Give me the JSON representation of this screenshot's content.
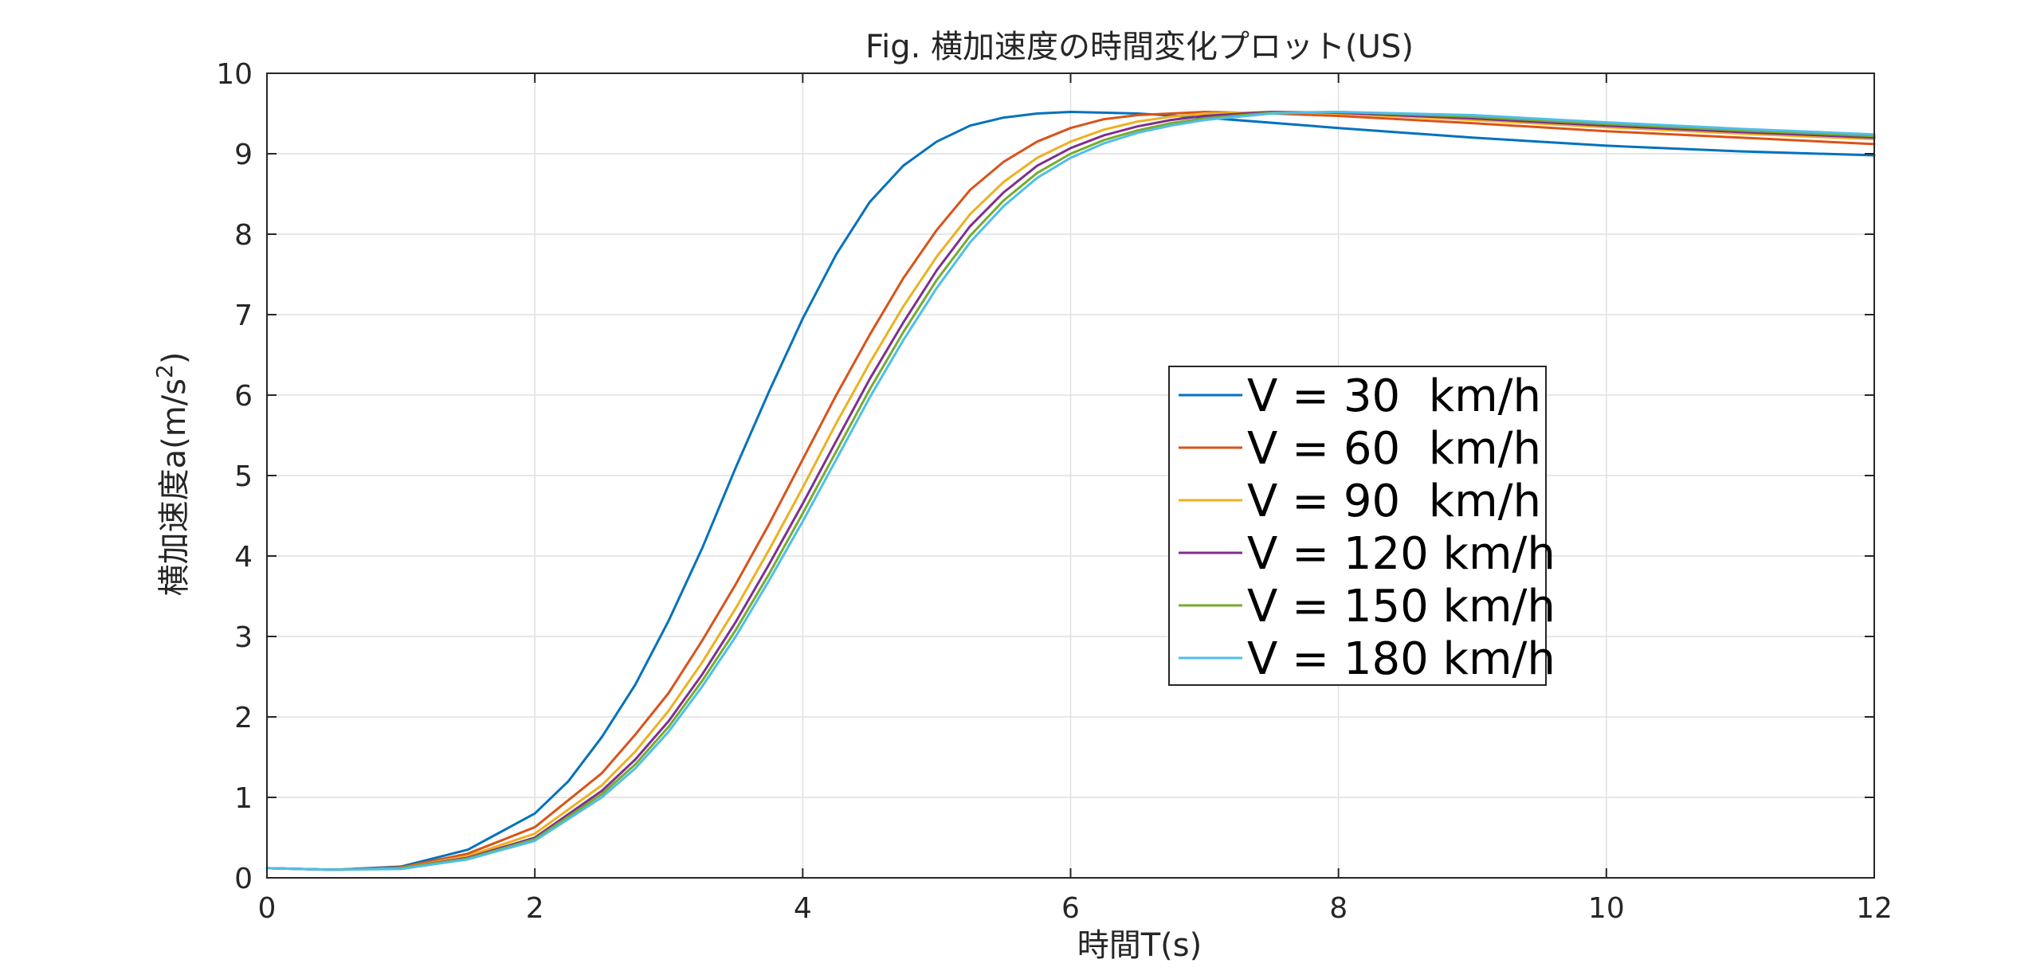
{
  "chart_data": {
    "type": "line",
    "title": "Fig. 横加速度の時間変化プロット(US)",
    "xlabel": "時間T(s)",
    "ylabel_main": "横加速度a(m/s",
    "ylabel_sup": "2",
    "ylabel_close": ")",
    "xlim": [
      0,
      12
    ],
    "ylim": [
      0,
      10
    ],
    "xticks": [
      0,
      2,
      4,
      6,
      8,
      10,
      12
    ],
    "yticks": [
      0,
      1,
      2,
      3,
      4,
      5,
      6,
      7,
      8,
      9,
      10
    ],
    "grid": true,
    "legend_position": "center-right",
    "series": [
      {
        "name": "V = 30  km/h",
        "color": "#0072BD",
        "points": [
          [
            0,
            0.12
          ],
          [
            0.5,
            0.1
          ],
          [
            1,
            0.14
          ],
          [
            1.5,
            0.35
          ],
          [
            2,
            0.8
          ],
          [
            2.25,
            1.2
          ],
          [
            2.5,
            1.75
          ],
          [
            2.75,
            2.4
          ],
          [
            3,
            3.2
          ],
          [
            3.25,
            4.1
          ],
          [
            3.5,
            5.1
          ],
          [
            3.75,
            6.05
          ],
          [
            4,
            6.95
          ],
          [
            4.25,
            7.75
          ],
          [
            4.5,
            8.4
          ],
          [
            4.75,
            8.85
          ],
          [
            5,
            9.15
          ],
          [
            5.25,
            9.35
          ],
          [
            5.5,
            9.45
          ],
          [
            5.75,
            9.5
          ],
          [
            6,
            9.52
          ],
          [
            6.5,
            9.5
          ],
          [
            7,
            9.45
          ],
          [
            8,
            9.32
          ],
          [
            9,
            9.2
          ],
          [
            10,
            9.1
          ],
          [
            11,
            9.03
          ],
          [
            12,
            8.98
          ]
        ]
      },
      {
        "name": "V = 60  km/h",
        "color": "#D95319",
        "points": [
          [
            0,
            0.12
          ],
          [
            0.5,
            0.1
          ],
          [
            1,
            0.13
          ],
          [
            1.5,
            0.3
          ],
          [
            2,
            0.63
          ],
          [
            2.5,
            1.3
          ],
          [
            2.75,
            1.78
          ],
          [
            3,
            2.3
          ],
          [
            3.25,
            2.95
          ],
          [
            3.5,
            3.65
          ],
          [
            3.75,
            4.4
          ],
          [
            4,
            5.2
          ],
          [
            4.25,
            6.0
          ],
          [
            4.5,
            6.75
          ],
          [
            4.75,
            7.45
          ],
          [
            5,
            8.05
          ],
          [
            5.25,
            8.55
          ],
          [
            5.5,
            8.9
          ],
          [
            5.75,
            9.15
          ],
          [
            6,
            9.32
          ],
          [
            6.25,
            9.43
          ],
          [
            6.5,
            9.48
          ],
          [
            7,
            9.52
          ],
          [
            7.5,
            9.5
          ],
          [
            8,
            9.47
          ],
          [
            9,
            9.38
          ],
          [
            10,
            9.28
          ],
          [
            11,
            9.2
          ],
          [
            12,
            9.12
          ]
        ]
      },
      {
        "name": "V = 90  km/h",
        "color": "#EDB120",
        "points": [
          [
            0,
            0.12
          ],
          [
            0.5,
            0.1
          ],
          [
            1,
            0.12
          ],
          [
            1.5,
            0.27
          ],
          [
            2,
            0.55
          ],
          [
            2.5,
            1.15
          ],
          [
            2.75,
            1.57
          ],
          [
            3,
            2.08
          ],
          [
            3.25,
            2.68
          ],
          [
            3.5,
            3.35
          ],
          [
            3.75,
            4.08
          ],
          [
            4,
            4.85
          ],
          [
            4.25,
            5.65
          ],
          [
            4.5,
            6.4
          ],
          [
            4.75,
            7.1
          ],
          [
            5,
            7.72
          ],
          [
            5.25,
            8.25
          ],
          [
            5.5,
            8.65
          ],
          [
            5.75,
            8.95
          ],
          [
            6,
            9.15
          ],
          [
            6.25,
            9.3
          ],
          [
            6.5,
            9.4
          ],
          [
            6.75,
            9.46
          ],
          [
            7,
            9.5
          ],
          [
            7.5,
            9.52
          ],
          [
            8,
            9.5
          ],
          [
            9,
            9.42
          ],
          [
            10,
            9.33
          ],
          [
            11,
            9.25
          ],
          [
            12,
            9.18
          ]
        ]
      },
      {
        "name": "V = 120 km/h",
        "color": "#7E2F8E",
        "points": [
          [
            0,
            0.12
          ],
          [
            0.5,
            0.1
          ],
          [
            1,
            0.12
          ],
          [
            1.5,
            0.25
          ],
          [
            2,
            0.5
          ],
          [
            2.5,
            1.08
          ],
          [
            2.75,
            1.47
          ],
          [
            3,
            1.95
          ],
          [
            3.25,
            2.53
          ],
          [
            3.5,
            3.18
          ],
          [
            3.75,
            3.9
          ],
          [
            4,
            4.65
          ],
          [
            4.25,
            5.43
          ],
          [
            4.5,
            6.2
          ],
          [
            4.75,
            6.9
          ],
          [
            5,
            7.55
          ],
          [
            5.25,
            8.1
          ],
          [
            5.5,
            8.52
          ],
          [
            5.75,
            8.85
          ],
          [
            6,
            9.07
          ],
          [
            6.25,
            9.23
          ],
          [
            6.5,
            9.34
          ],
          [
            6.75,
            9.42
          ],
          [
            7,
            9.47
          ],
          [
            7.5,
            9.52
          ],
          [
            8,
            9.51
          ],
          [
            9,
            9.44
          ],
          [
            10,
            9.35
          ],
          [
            11,
            9.27
          ],
          [
            12,
            9.2
          ]
        ]
      },
      {
        "name": "V = 150 km/h",
        "color": "#77AC30",
        "points": [
          [
            0,
            0.12
          ],
          [
            0.5,
            0.1
          ],
          [
            1,
            0.12
          ],
          [
            1.5,
            0.24
          ],
          [
            2,
            0.48
          ],
          [
            2.5,
            1.04
          ],
          [
            2.75,
            1.41
          ],
          [
            3,
            1.88
          ],
          [
            3.25,
            2.45
          ],
          [
            3.5,
            3.08
          ],
          [
            3.75,
            3.78
          ],
          [
            4,
            4.53
          ],
          [
            4.25,
            5.3
          ],
          [
            4.5,
            6.07
          ],
          [
            4.75,
            6.78
          ],
          [
            5,
            7.43
          ],
          [
            5.25,
            7.98
          ],
          [
            5.5,
            8.42
          ],
          [
            5.75,
            8.76
          ],
          [
            6,
            9.0
          ],
          [
            6.25,
            9.17
          ],
          [
            6.5,
            9.29
          ],
          [
            6.75,
            9.38
          ],
          [
            7,
            9.44
          ],
          [
            7.5,
            9.51
          ],
          [
            8,
            9.52
          ],
          [
            9,
            9.46
          ],
          [
            10,
            9.37
          ],
          [
            11,
            9.29
          ],
          [
            12,
            9.22
          ]
        ]
      },
      {
        "name": "V = 180 km/h",
        "color": "#4DBEEE",
        "points": [
          [
            0,
            0.12
          ],
          [
            0.5,
            0.1
          ],
          [
            1,
            0.11
          ],
          [
            1.5,
            0.23
          ],
          [
            2,
            0.46
          ],
          [
            2.5,
            1.0
          ],
          [
            2.75,
            1.36
          ],
          [
            3,
            1.82
          ],
          [
            3.25,
            2.38
          ],
          [
            3.5,
            3.0
          ],
          [
            3.75,
            3.7
          ],
          [
            4,
            4.43
          ],
          [
            4.25,
            5.2
          ],
          [
            4.5,
            5.97
          ],
          [
            4.75,
            6.68
          ],
          [
            5,
            7.33
          ],
          [
            5.25,
            7.9
          ],
          [
            5.5,
            8.35
          ],
          [
            5.75,
            8.7
          ],
          [
            6,
            8.95
          ],
          [
            6.25,
            9.13
          ],
          [
            6.5,
            9.26
          ],
          [
            6.75,
            9.35
          ],
          [
            7,
            9.42
          ],
          [
            7.5,
            9.5
          ],
          [
            8,
            9.52
          ],
          [
            9,
            9.48
          ],
          [
            10,
            9.39
          ],
          [
            11,
            9.31
          ],
          [
            12,
            9.24
          ]
        ]
      }
    ]
  }
}
